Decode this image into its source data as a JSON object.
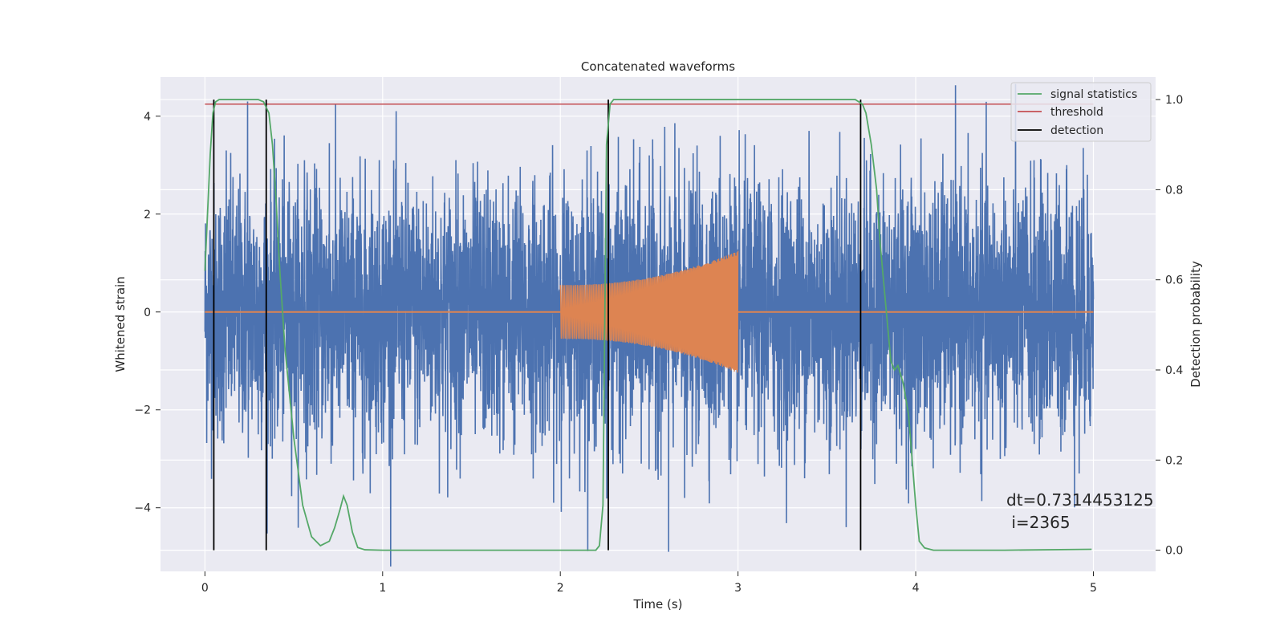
{
  "chart_data": {
    "type": "line",
    "title": "Concatenated waveforms",
    "xlabel": "Time (s)",
    "ylabel": "Whitened strain",
    "y2label": "Detection probability",
    "xlim": [
      -0.25,
      5.35
    ],
    "ylim": [
      -5.3,
      4.8
    ],
    "y2lim": [
      -0.047,
      1.05
    ],
    "x_ticks": [
      0,
      1,
      2,
      3,
      4,
      5
    ],
    "y_ticks": [
      -4,
      -2,
      0,
      2,
      4
    ],
    "y2_ticks": [
      0.0,
      0.2,
      0.4,
      0.6,
      0.8,
      1.0
    ],
    "x_tick_labels": [
      "0",
      "1",
      "2",
      "3",
      "4",
      "5"
    ],
    "y_tick_labels": [
      "−4",
      "−2",
      "0",
      "2",
      "4"
    ],
    "y2_tick_labels": [
      "0.0",
      "0.2",
      "0.4",
      "0.6",
      "0.8",
      "1.0"
    ],
    "grid": true,
    "legend_position": "top-right",
    "legend": [
      "signal statistics",
      "threshold",
      "detection"
    ],
    "series": [
      {
        "name": "noisy strain",
        "color": "#4c72b0",
        "kind": "noise",
        "x_range": [
          0,
          5
        ],
        "typical_amplitude": 1.3,
        "peaks": [
          {
            "x": 0.24,
            "y": 4.3
          },
          {
            "x": 0.12,
            "y": 3.3
          },
          {
            "x": 0.56,
            "y": 3.1
          },
          {
            "x": 0.7,
            "y": 3.45
          },
          {
            "x": 2.15,
            "y": 3.3
          },
          {
            "x": 2.5,
            "y": 3.2
          },
          {
            "x": 2.9,
            "y": 3.6
          },
          {
            "x": 3.4,
            "y": 3.7
          },
          {
            "x": 4.85,
            "y": 3.0
          },
          {
            "x": 0.71,
            "y": -3.1
          },
          {
            "x": 0.9,
            "y": -3.0
          },
          {
            "x": 2.35,
            "y": -3.3
          },
          {
            "x": 2.61,
            "y": -4.9
          },
          {
            "x": 2.7,
            "y": -3.8
          },
          {
            "x": 4.92,
            "y": -3.3
          },
          {
            "x": 0.3,
            "y": -2.5
          },
          {
            "x": 4.0,
            "y": -2.8
          }
        ]
      },
      {
        "name": "injected waveform",
        "color": "#dd8452",
        "kind": "chirp",
        "start": 2.0,
        "end": 3.0,
        "amplitude_start": 0.55,
        "amplitude_end": 1.25,
        "y_outside": 0
      },
      {
        "name": "signal statistics",
        "color": "#55a868",
        "axis": "right",
        "x": [
          0,
          0.015,
          0.03,
          0.045,
          0.06,
          0.08,
          0.1,
          0.15,
          0.2,
          0.25,
          0.3,
          0.33,
          0.36,
          0.38,
          0.4,
          0.42,
          0.45,
          0.5,
          0.55,
          0.6,
          0.65,
          0.7,
          0.73,
          0.76,
          0.78,
          0.8,
          0.83,
          0.86,
          0.9,
          1.0,
          1.5,
          2.0,
          2.2,
          2.22,
          2.24,
          2.26,
          2.28,
          2.3,
          2.35,
          2.5,
          3.0,
          3.5,
          3.66,
          3.7,
          3.72,
          3.75,
          3.78,
          3.8,
          3.83,
          3.86,
          3.88,
          3.9,
          3.93,
          3.96,
          4.0,
          4.02,
          4.05,
          4.1,
          4.5,
          4.99
        ],
        "y": [
          0.62,
          0.75,
          0.88,
          0.97,
          0.995,
          1.0,
          1.0,
          1.0,
          1.0,
          1.0,
          1.0,
          0.995,
          0.97,
          0.9,
          0.78,
          0.63,
          0.45,
          0.25,
          0.1,
          0.03,
          0.01,
          0.02,
          0.05,
          0.09,
          0.12,
          0.1,
          0.04,
          0.006,
          0.001,
          0.0,
          0.0,
          0.0,
          0.0,
          0.01,
          0.1,
          0.9,
          0.99,
          1.0,
          1.0,
          1.0,
          1.0,
          1.0,
          1.0,
          0.99,
          0.97,
          0.9,
          0.8,
          0.68,
          0.55,
          0.42,
          0.4,
          0.41,
          0.37,
          0.3,
          0.1,
          0.02,
          0.005,
          0.0,
          0.0,
          0.002
        ]
      },
      {
        "name": "threshold",
        "color": "#c44e52",
        "axis": "right",
        "x": [
          0,
          5
        ],
        "y": [
          0.99,
          0.99
        ]
      }
    ],
    "detections": {
      "name": "detection",
      "color": "#000000",
      "x": [
        0.05,
        0.345,
        2.27,
        3.69
      ]
    },
    "annotation": {
      "line1": "dt=0.7314453125",
      "line2": " i=2365"
    }
  }
}
